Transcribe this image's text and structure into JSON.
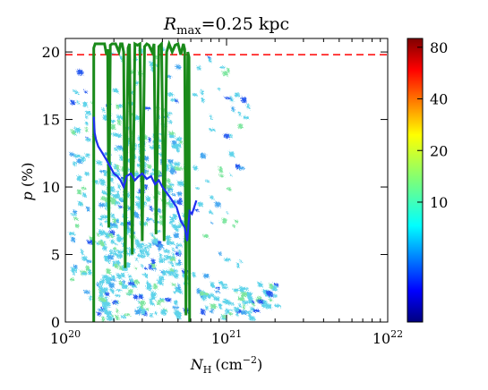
{
  "chart_data": {
    "type": "scatter",
    "title": {
      "symbol": "R",
      "subscript": "max",
      "value": "=0.25 kpc"
    },
    "xlabel": {
      "symbol": "N",
      "subscript": "H",
      "unit": "(cm",
      "exp": "−2",
      "close": ")"
    },
    "ylabel": {
      "symbol": "p",
      "unit": " (%)"
    },
    "x_scale": "log",
    "xlim": [
      1e+20,
      1e+22
    ],
    "ylim": [
      0,
      21
    ],
    "x_ticks": [
      {
        "value": 1e+20,
        "base": "10",
        "exp": "20"
      },
      {
        "value": 1e+21,
        "base": "10",
        "exp": "21"
      },
      {
        "value": 1e+22,
        "base": "10",
        "exp": "22"
      }
    ],
    "y_ticks": [
      "0",
      "5",
      "10",
      "15",
      "20"
    ],
    "reference_line": {
      "y": 19.8,
      "color": "#ff0000",
      "style": "dashed"
    },
    "colorbar": {
      "ticks": [
        "10",
        "20",
        "40",
        "80"
      ],
      "tick_values": [
        10,
        20,
        40,
        80
      ],
      "range": [
        2,
        90
      ],
      "colormap": "jet"
    },
    "density_color": "#5fd3ea",
    "series": [
      {
        "role": "mean polarization fraction",
        "color": "#1e2ef0",
        "x": [
          1.5e+20,
          1.52e+20,
          1.55e+20,
          1.6e+20,
          1.7e+20,
          1.8e+20,
          1.9e+20,
          2e+20,
          2.1e+20,
          2.2e+20,
          2.3e+20,
          2.4e+20,
          2.55e+20,
          2.7e+20,
          2.85e+20,
          3e+20,
          3.2e+20,
          3.4e+20,
          3.6e+20,
          3.8e+20,
          4e+20,
          4.3e+20,
          4.6e+20,
          4.9e+20,
          5.2e+20,
          5.5e+20,
          5.7e+20,
          5.9e+20,
          6.1e+20,
          6.3e+20,
          6.5e+20
        ],
        "y": [
          15.2,
          14.0,
          13.5,
          13.0,
          12.5,
          12.0,
          11.5,
          11.0,
          10.8,
          10.5,
          10.0,
          10.8,
          11.0,
          10.5,
          10.8,
          11.0,
          10.6,
          10.8,
          10.2,
          10.5,
          10.0,
          9.5,
          9.0,
          8.5,
          7.5,
          7.0,
          6.0,
          8.2,
          8.0,
          8.5,
          9.0
        ]
      },
      {
        "role": "column-density contour",
        "color": "#1a8a1a",
        "x": [
          1.5e+20,
          1.5e+20,
          1.53e+20,
          1.75e+20,
          1.8e+20,
          1.83e+20,
          1.86e+20,
          1.9e+20,
          1.95e+20,
          2.05e+20,
          2.15e+20,
          2.2e+20,
          2.25e+20,
          2.3e+20,
          2.35e+20,
          2.45e+20,
          2.5e+20,
          2.6e+20,
          2.7e+20,
          2.8e+20,
          2.9e+20,
          3e+20,
          3.1e+20,
          3.2e+20,
          3.3e+20,
          3.45e+20,
          3.55e+20,
          3.65e+20,
          3.8e+20,
          3.95e+20,
          4.1e+20,
          4.25e+20,
          4.4e+20,
          4.6e+20,
          4.8e+20,
          5e+20,
          5.2e+20,
          5.4e+20,
          5.5e+20,
          5.6e+20,
          5.75e+20,
          5.85e+20,
          5.9e+20
        ],
        "y": [
          0,
          20.3,
          20.6,
          20.6,
          19.8,
          20.2,
          7.0,
          20.5,
          20.6,
          20.6,
          20.0,
          20.6,
          20.6,
          20.0,
          4.0,
          20.3,
          20.6,
          5.0,
          20.6,
          20.5,
          20.6,
          6.0,
          20.4,
          20.6,
          20.5,
          20.0,
          20.6,
          6.5,
          20.4,
          20.6,
          6.0,
          20.0,
          20.6,
          20.0,
          20.5,
          20.6,
          19.8,
          20.6,
          20.2,
          0.5,
          20.0,
          19.6,
          0
        ]
      }
    ]
  }
}
